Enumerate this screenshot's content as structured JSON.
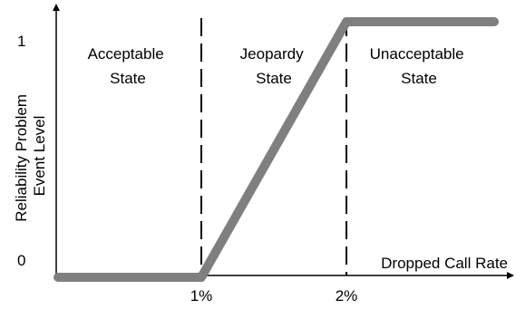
{
  "chart_data": {
    "type": "line",
    "title": "",
    "xlabel": "Dropped Call Rate",
    "ylabel": [
      "Reliability Problem",
      "Event Level"
    ],
    "x_ticks": [
      "1%",
      "2%"
    ],
    "y_ticks": [
      "0",
      "1"
    ],
    "xlim": [
      0,
      3
    ],
    "ylim": [
      0,
      1
    ],
    "series": [
      {
        "color": "#7f7f7f",
        "points": [
          [
            0,
            0
          ],
          [
            1,
            0
          ],
          [
            2,
            1
          ],
          [
            3,
            1
          ]
        ]
      }
    ],
    "thresholds": [
      1,
      2
    ],
    "regions": [
      {
        "line1": "Acceptable",
        "line2": "State"
      },
      {
        "line1": "Jeopardy",
        "line2": "State"
      },
      {
        "line1": "Unacceptable",
        "line2": "State"
      }
    ],
    "grid": false
  }
}
